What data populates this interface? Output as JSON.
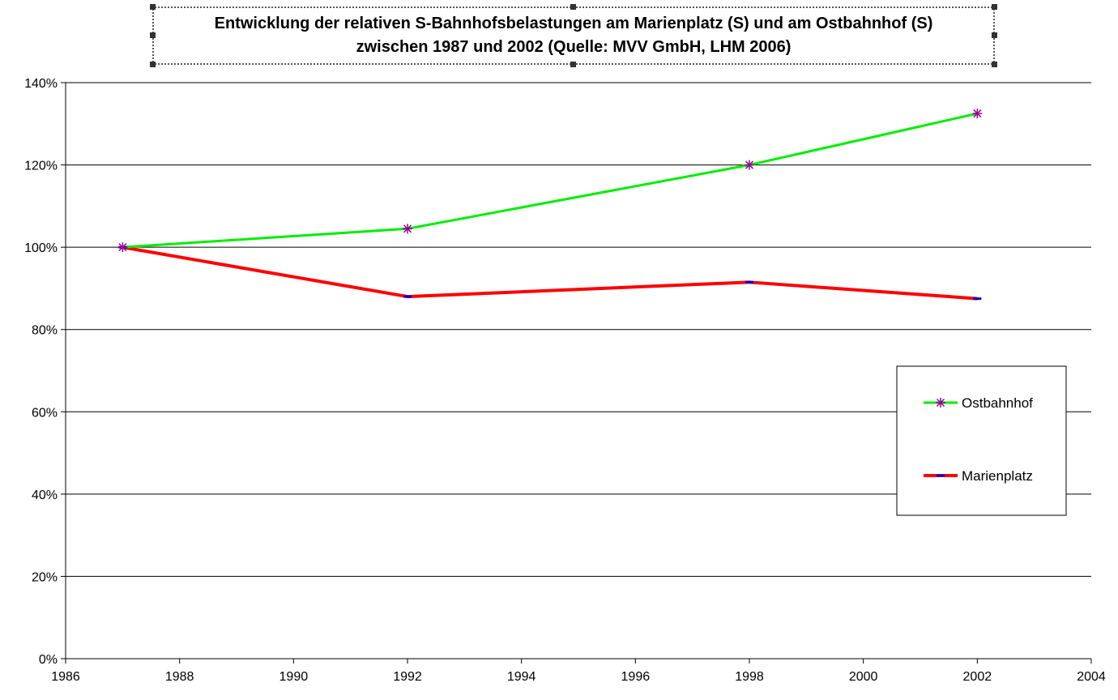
{
  "chart_data": {
    "type": "line",
    "title_line1": "Entwicklung der relativen S-Bahnhofsbelastungen am Marienplatz (S) und am Ostbahnhof (S)",
    "title_line2": "zwischen 1987 und 2002  (Quelle: MVV GmbH, LHM 2006)",
    "xlabel": "",
    "ylabel": "",
    "xlim": [
      1986,
      2004
    ],
    "ylim": [
      0,
      140
    ],
    "x_ticks": [
      "1986",
      "1988",
      "1990",
      "1992",
      "1994",
      "1996",
      "1998",
      "2000",
      "2002",
      "2004"
    ],
    "y_ticks": [
      "0%",
      "20%",
      "40%",
      "60%",
      "80%",
      "100%",
      "120%",
      "140%"
    ],
    "grid": "horizontal",
    "legend_position": "right",
    "series": [
      {
        "name": "Ostbahnhof",
        "color": "#00ee00",
        "marker_color": "#990099",
        "marker": "star",
        "x": [
          1987,
          1992,
          1998,
          2002
        ],
        "y": [
          100,
          104.5,
          120,
          132.5
        ]
      },
      {
        "name": "Marienplatz",
        "color": "#ff0000",
        "marker_color": "#0000cc",
        "marker": "dash",
        "x": [
          1987,
          1992,
          1998,
          2002
        ],
        "y": [
          100,
          88,
          91.5,
          87.5
        ]
      }
    ]
  }
}
